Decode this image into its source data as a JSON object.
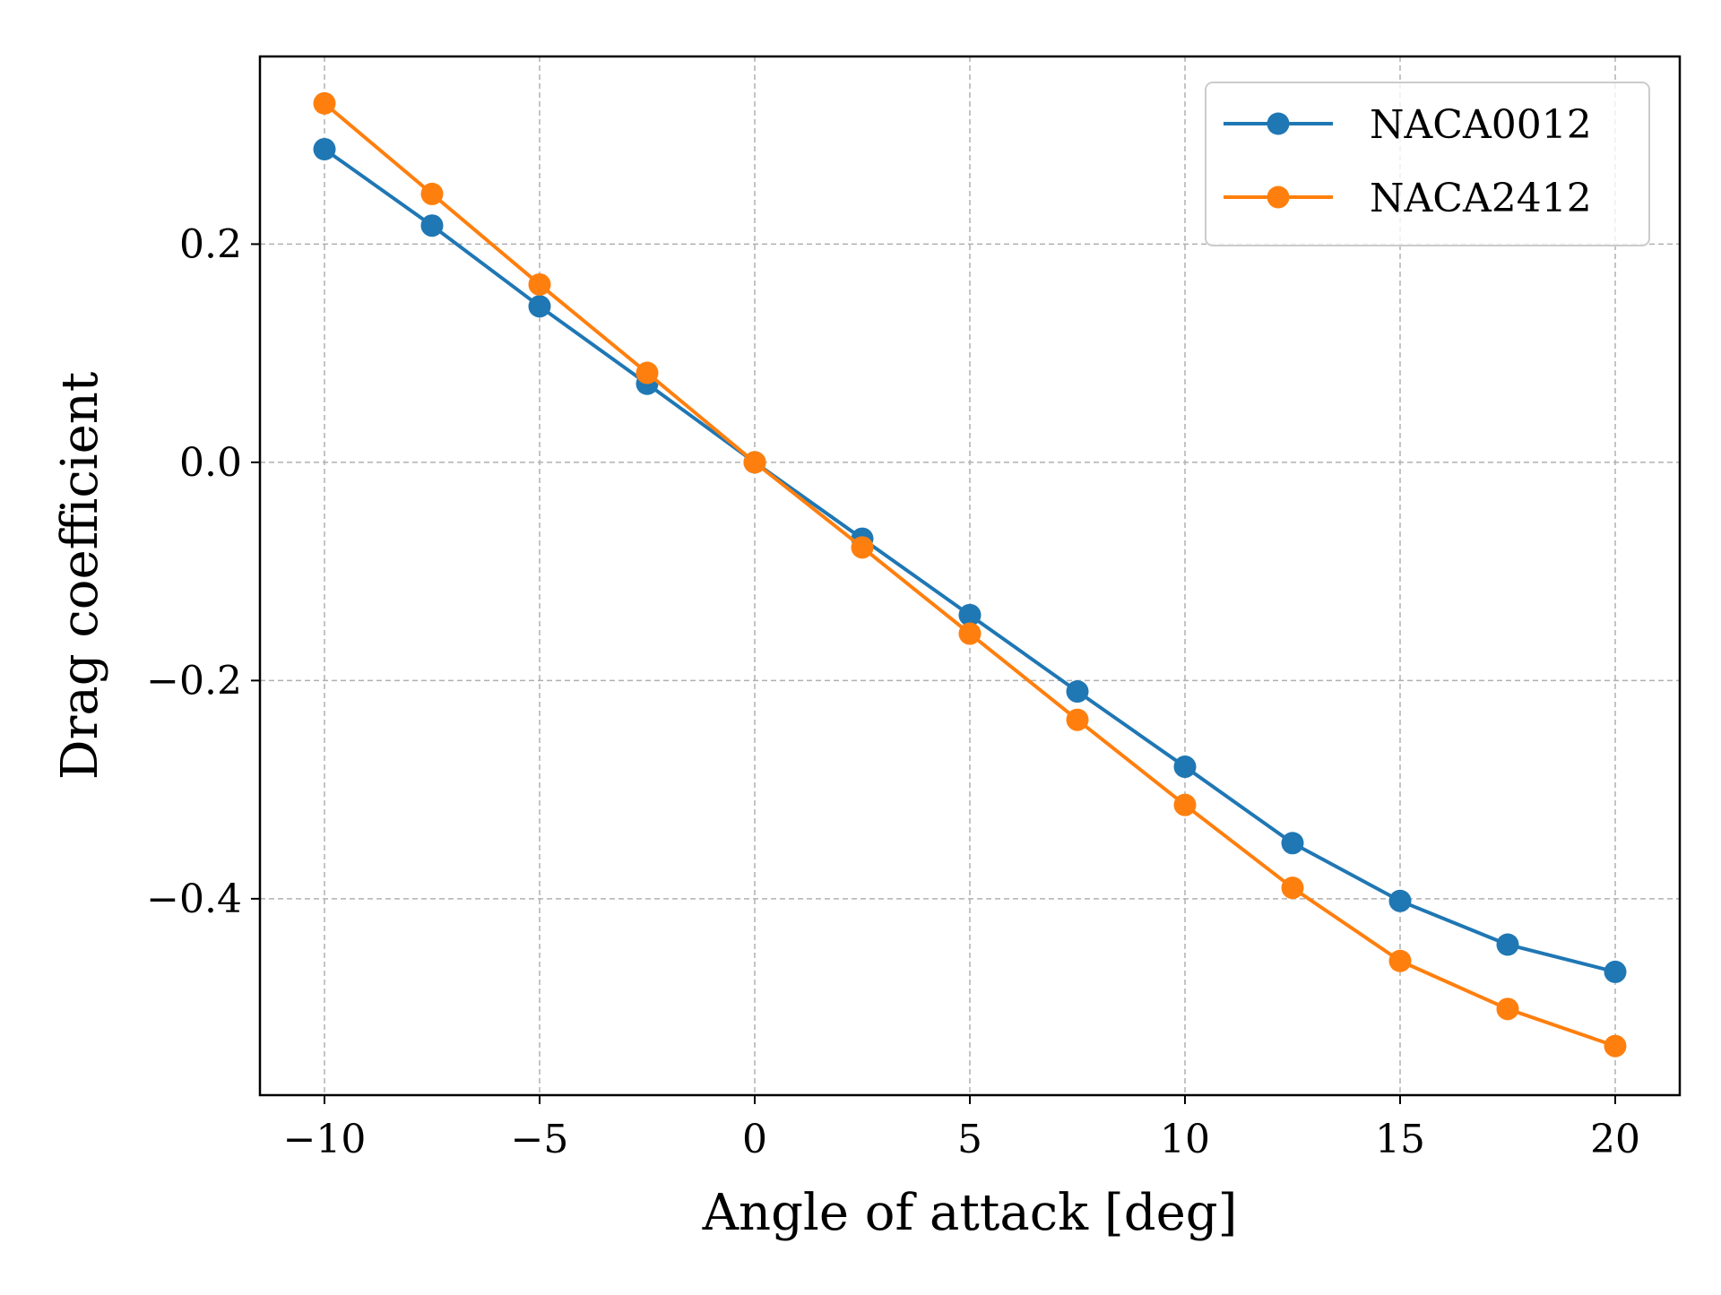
{
  "chart_data": {
    "type": "line",
    "xlabel": "Angle of attack [deg]",
    "ylabel": "Drag coefficient",
    "x": [
      -10,
      -7.5,
      -5,
      -2.5,
      0,
      2.5,
      5,
      7.5,
      10,
      12.5,
      15,
      17.5,
      20
    ],
    "xlim": [
      -11.5,
      21.5
    ],
    "ylim": [
      -0.58,
      0.372
    ],
    "xticks": [
      -10,
      -5,
      0,
      5,
      10,
      15,
      20
    ],
    "xtick_labels": [
      "−10",
      "−5",
      "0",
      "5",
      "10",
      "15",
      "20"
    ],
    "yticks": [
      0.2,
      0.0,
      -0.2,
      -0.4
    ],
    "ytick_labels": [
      "0.2",
      "0.0",
      "−0.2",
      "−0.4"
    ],
    "grid": true,
    "legend_position": "top-right",
    "series": [
      {
        "name": "NACA0012",
        "color": "#1f77b4",
        "values": [
          0.287,
          0.217,
          0.143,
          0.072,
          0.0,
          -0.07,
          -0.14,
          -0.21,
          -0.279,
          -0.349,
          -0.402,
          -0.442,
          -0.467
        ]
      },
      {
        "name": "NACA2412",
        "color": "#ff7f0e",
        "values": [
          0.329,
          0.246,
          0.163,
          0.082,
          0.0,
          -0.078,
          -0.157,
          -0.236,
          -0.314,
          -0.39,
          -0.457,
          -0.501,
          -0.535
        ]
      }
    ]
  }
}
